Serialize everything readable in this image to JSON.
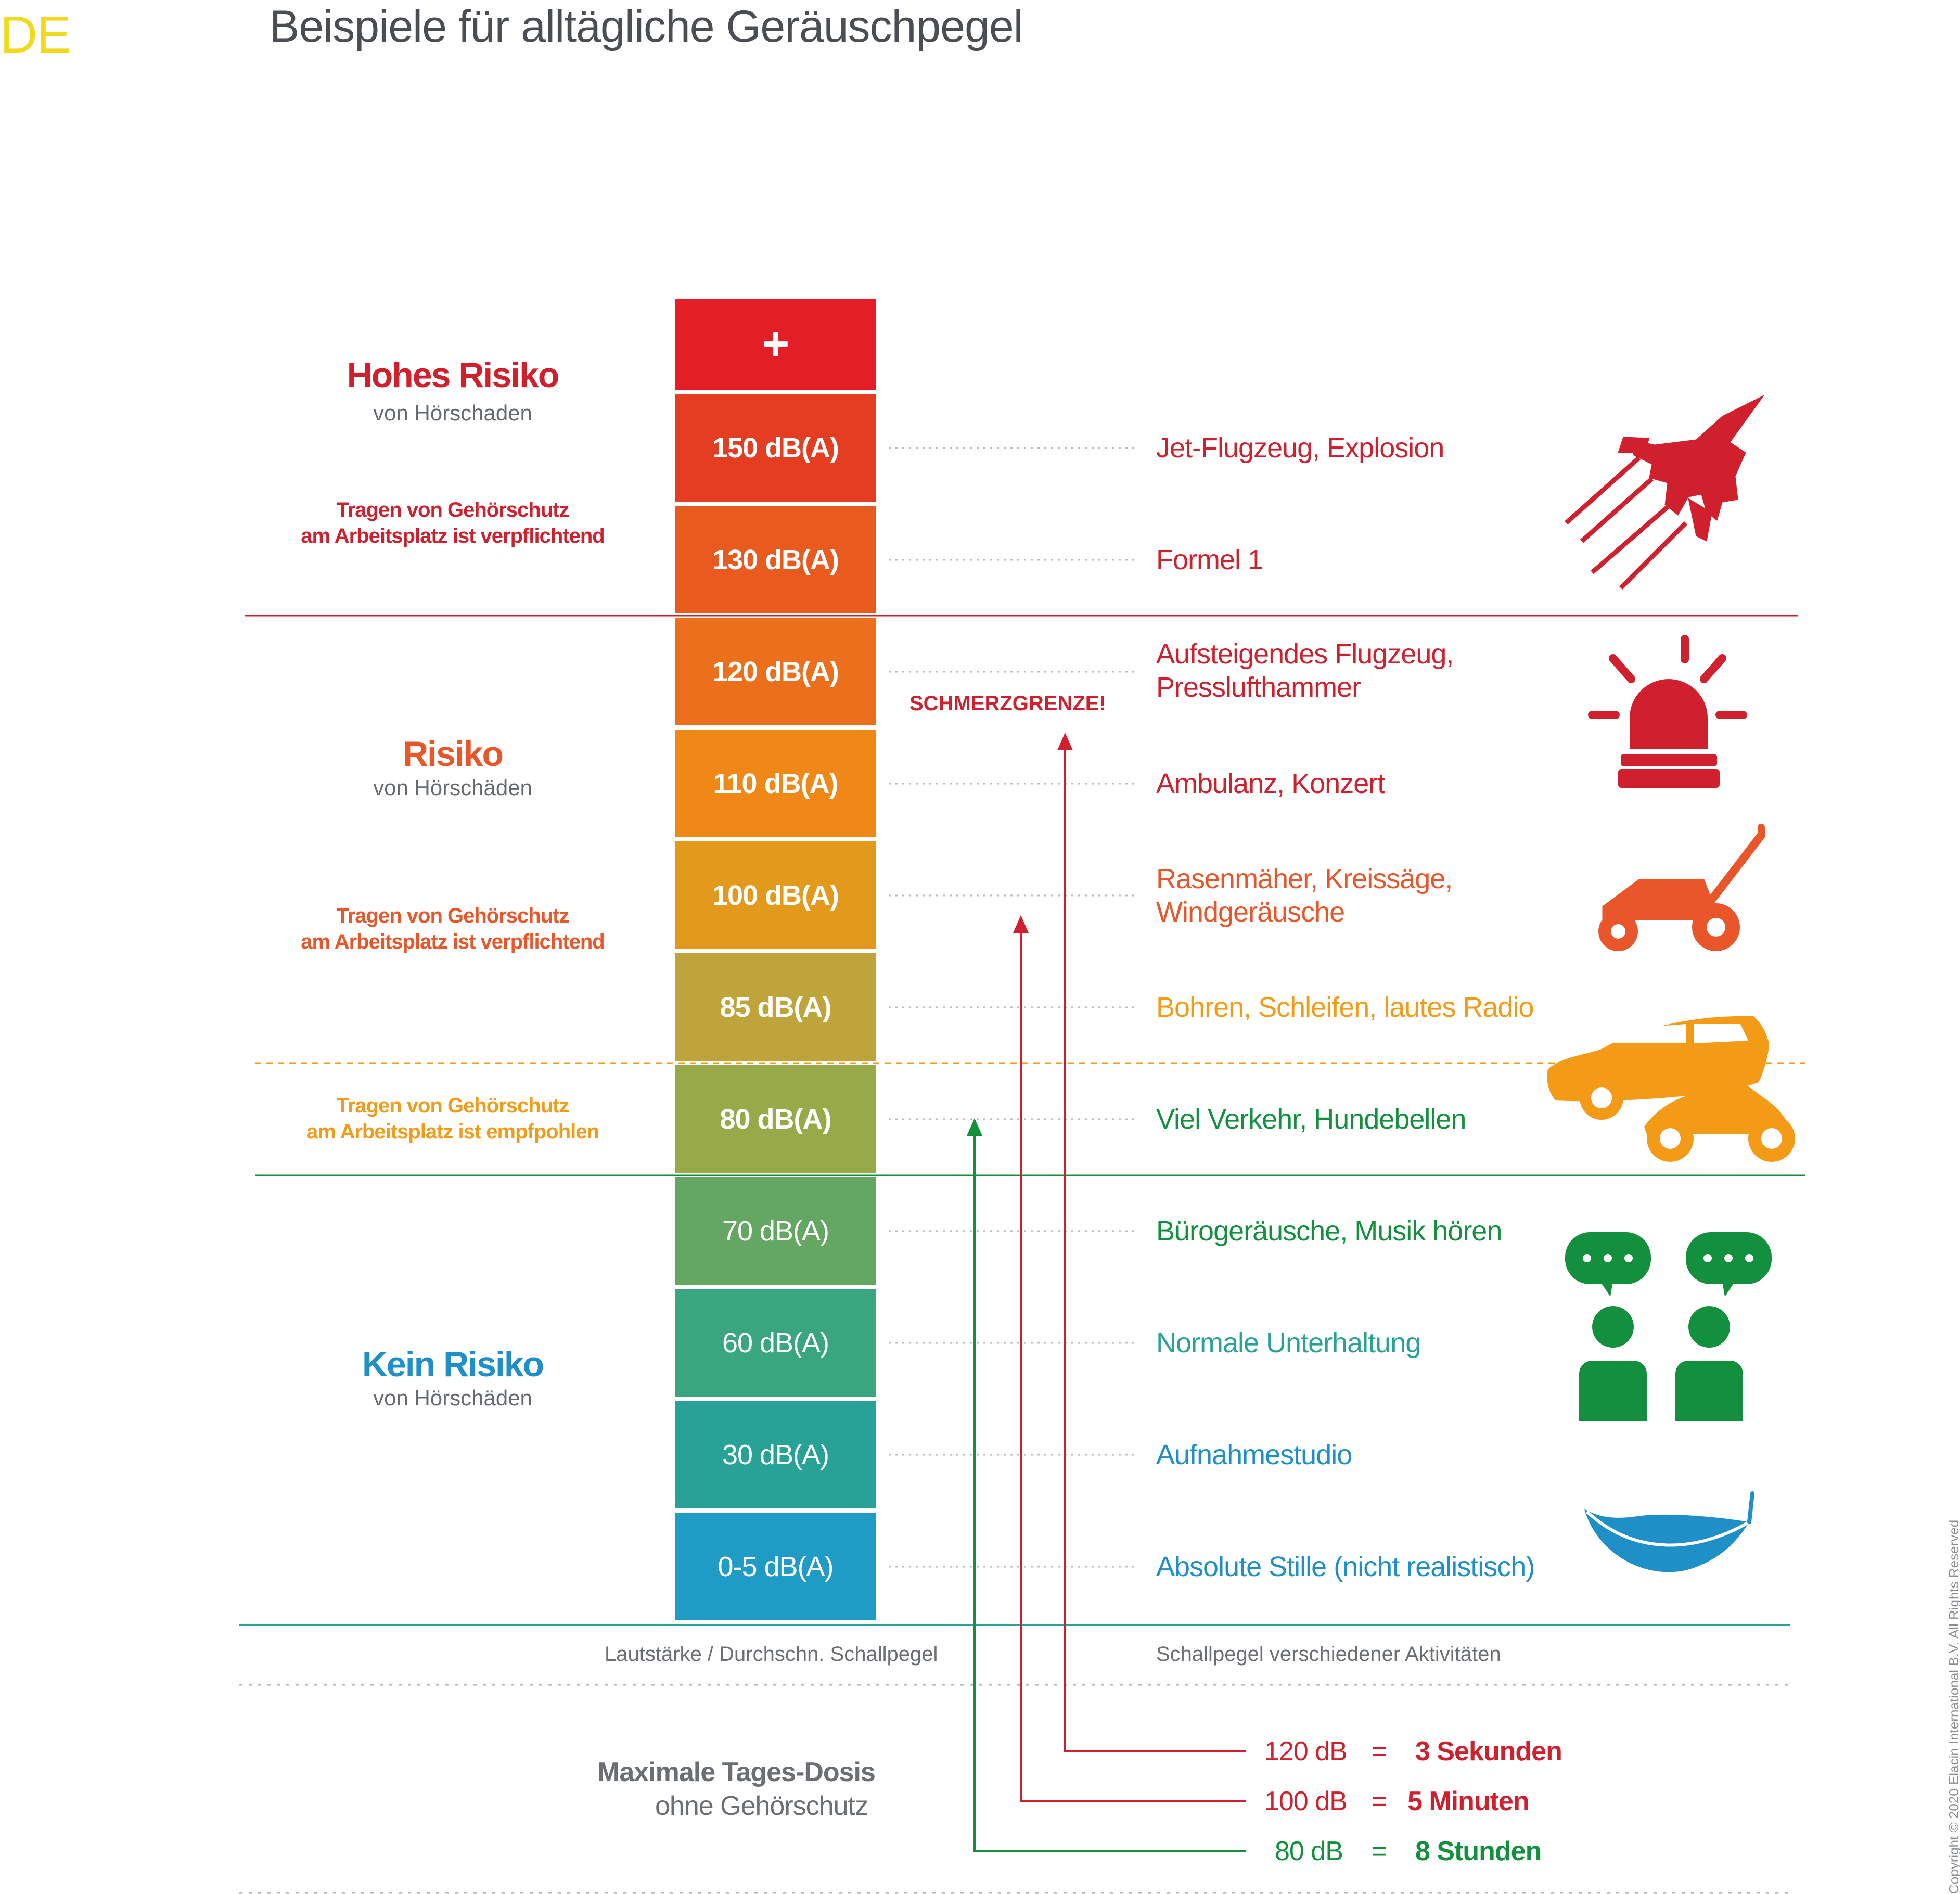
{
  "language_tag": "DE",
  "title": "Beispiele für alltägliche Geräuschpegel",
  "colors": {
    "high_risk": "#d0202d",
    "risk": "#e8562a",
    "recommended": "#f39a17",
    "safe_green": "#13903e",
    "safe_blue": "#1f8fc7",
    "gray_text": "#6b6e73"
  },
  "scale": [
    {
      "label": "+",
      "color": "#e31e24"
    },
    {
      "label": "150 dB(A)",
      "color": "#e43d22"
    },
    {
      "label": "130 dB(A)",
      "color": "#e85a1e"
    },
    {
      "label": "120 dB(A)",
      "color": "#ec6f1b"
    },
    {
      "label": "110 dB(A)",
      "color": "#f08818"
    },
    {
      "label": "100 dB(A)",
      "color": "#e39a1c"
    },
    {
      "label": "85 dB(A)",
      "color": "#bea43a"
    },
    {
      "label": "80 dB(A)",
      "color": "#97aa4a"
    },
    {
      "label": "70 dB(A)",
      "color": "#63a763"
    },
    {
      "label": "60 dB(A)",
      "color": "#3aa680"
    },
    {
      "label": "30 dB(A)",
      "color": "#28a296"
    },
    {
      "label": "0-5 dB(A)",
      "color": "#1e9cc5"
    }
  ],
  "activities": [
    {
      "text": "Jet-Flugzeug, Explosion",
      "color": "#d0202d",
      "icon": "jet-icon"
    },
    {
      "text": "Formel 1",
      "color": "#d0202d"
    },
    {
      "text": "Aufsteigendes Flugzeug,\nPresslufthammer",
      "color": "#d0202d",
      "icon": "siren-icon"
    },
    {
      "text": "Ambulanz, Konzert",
      "color": "#d0202d"
    },
    {
      "text": "Rasenmäher, Kreissäge,\nWindgeräusche",
      "color": "#e8562a",
      "icon": "lawnmower-icon"
    },
    {
      "text": "Bohren, Schleifen, lautes Radio",
      "color": "#f39a17"
    },
    {
      "text": "Viel Verkehr, Hundebellen",
      "color": "#13903e",
      "icon": "car-icon"
    },
    {
      "text": "Bürogeräusche, Musik hören",
      "color": "#13903e",
      "icon": "people-talking-icon"
    },
    {
      "text": "Normale Unterhaltung",
      "color": "#28a296"
    },
    {
      "text": "Aufnahmestudio",
      "color": "#1f8fc7"
    },
    {
      "text": "Absolute Stille (nicht realistisch)",
      "color": "#1f8fc7",
      "icon": "feather-icon"
    }
  ],
  "zones": {
    "high": {
      "title": "Hohes Risiko",
      "subtitle": "von Hörschaden",
      "note": "Tragen von Gehörschutz\nam Arbeitsplatz ist verpflichtend"
    },
    "risk": {
      "title": "Risiko",
      "subtitle": "von Hörschäden",
      "note": "Tragen von Gehörschutz\nam Arbeitsplatz ist verpflichtend"
    },
    "recommended": {
      "note": "Tragen von Gehörschutz\nam Arbeitsplatz ist empfpohlen"
    },
    "safe": {
      "title": "Kein Risiko",
      "subtitle": "von Hörschäden"
    }
  },
  "pain_threshold": "SCHMERZGRENZE!",
  "captions": {
    "left": "Lautstärke / Durchschn. Schallpegel",
    "right": "Schallpegel verschiedener Aktivitäten"
  },
  "dose": {
    "title": "Maximale Tages-Dosis",
    "subtitle": "ohne Gehörschutz",
    "rows": [
      {
        "level": "120 dB",
        "eq": "=",
        "time": "3 Sekunden",
        "color": "#d0202d"
      },
      {
        "level": "100 dB",
        "eq": "=",
        "time": "5 Minuten",
        "color": "#d0202d"
      },
      {
        "level": "80 dB",
        "eq": "=",
        "time": "8 Stunden",
        "color": "#13903e"
      }
    ]
  },
  "copyright": "Copyright © 2020 Elacin International B.V. All Rights Reserved"
}
